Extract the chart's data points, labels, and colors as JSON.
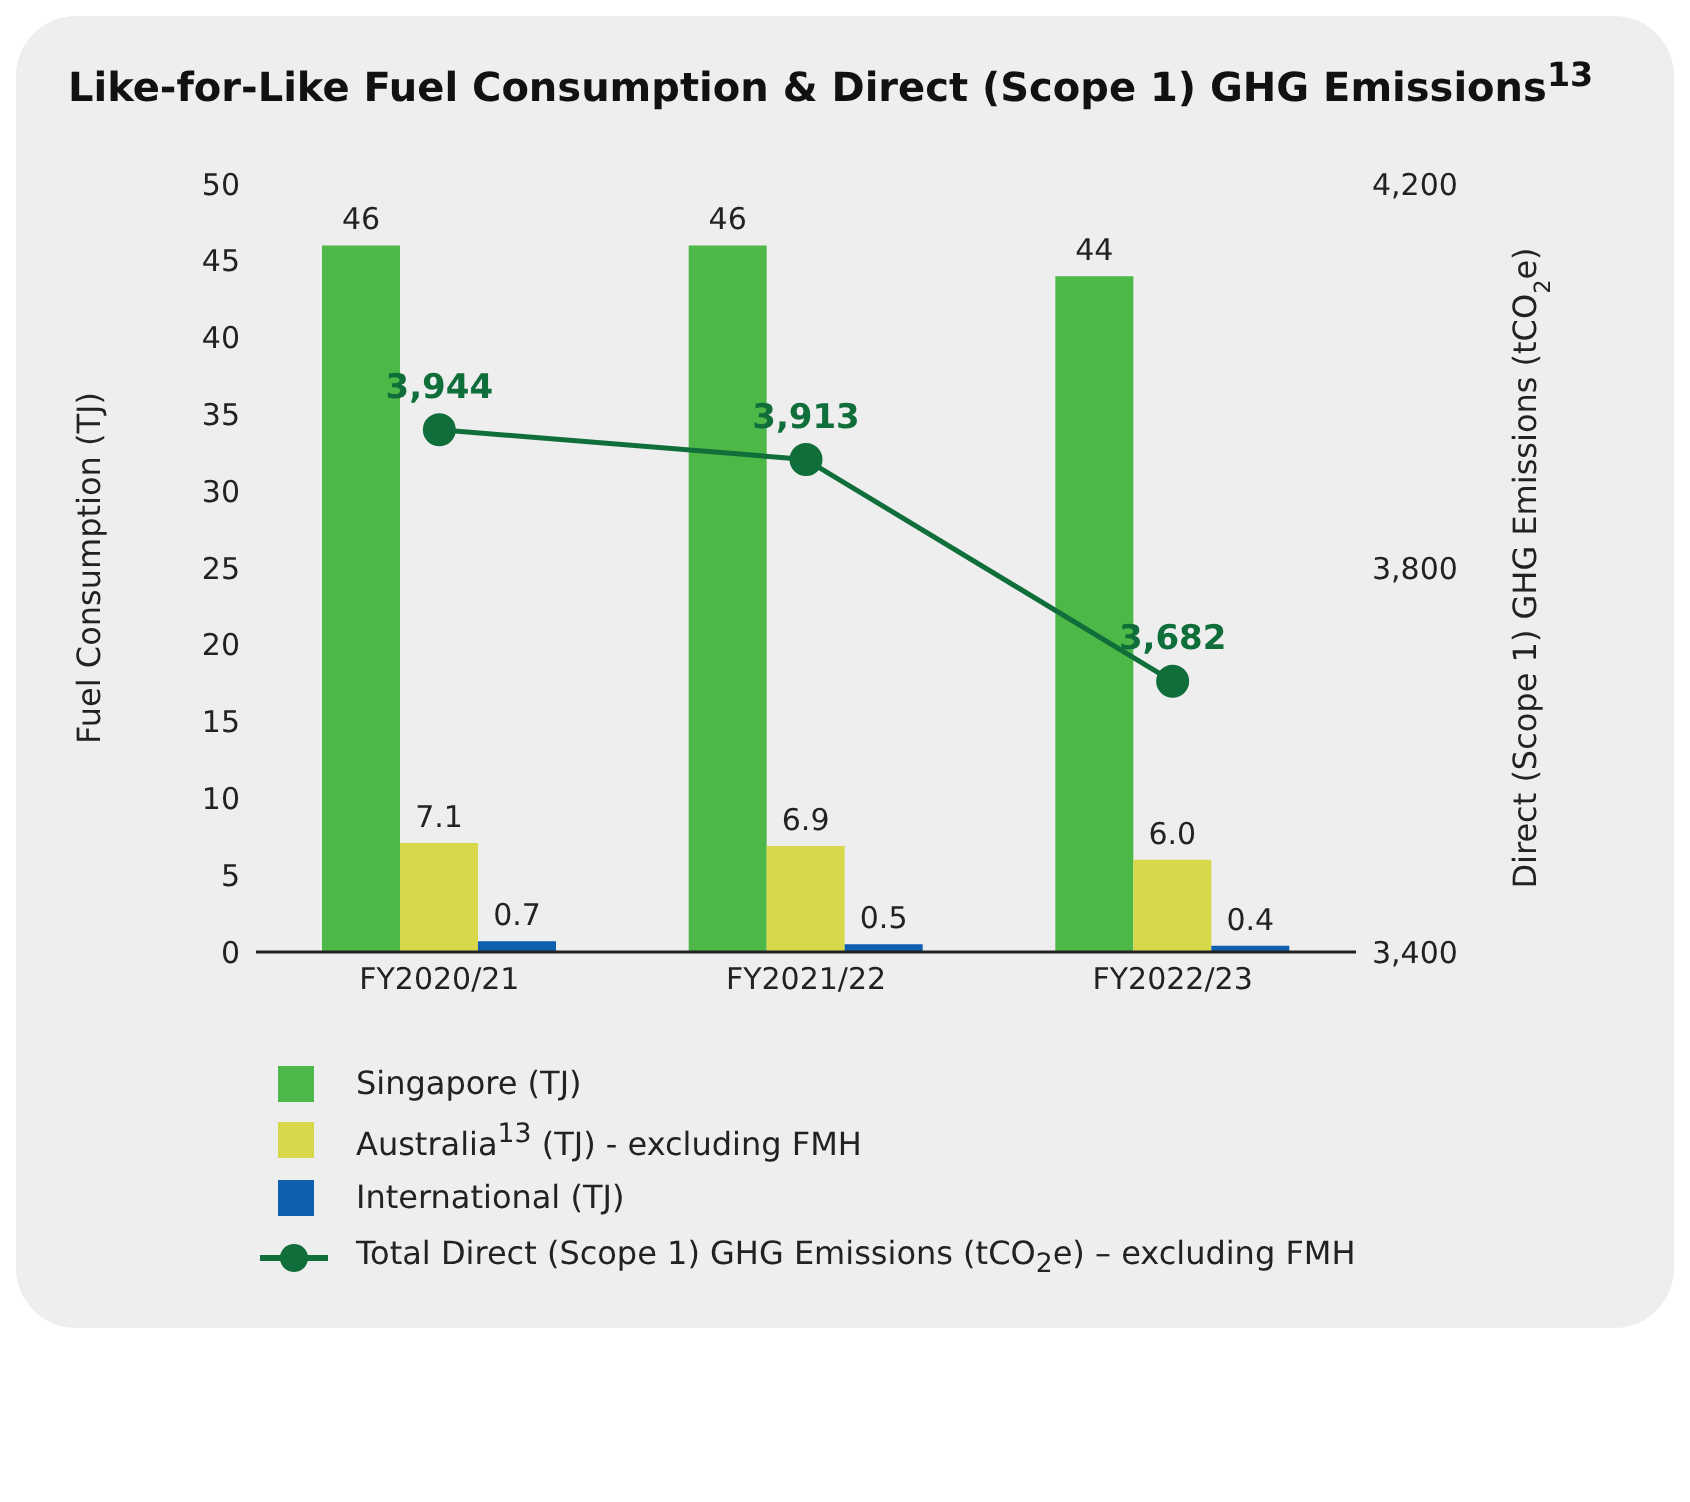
{
  "chart_data": {
    "type": "bar",
    "title": "Like-for-Like Fuel Consumption & Direct (Scope 1) GHG Emissions$^{13}$",
    "ylabel": "Fuel Consumption (TJ)",
    "y2label": "Direct (Scope 1) GHG Emissions (tCO$_{2}$e)",
    "categories": [
      "FY2020/21",
      "FY2021/22",
      "FY2022/23"
    ],
    "series": [
      {
        "name": "Singapore (TJ)",
        "color": "#4db848",
        "values": [
          46,
          46,
          44
        ]
      },
      {
        "name": "Australia$^{13}$ (TJ) - excluding FMH",
        "color": "#d7d94a",
        "values": [
          7.1,
          6.9,
          6.0
        ],
        "value_labels": [
          "7.1",
          "6.9",
          "6.0"
        ]
      },
      {
        "name": "International (TJ)",
        "color": "#0e5fae",
        "values": [
          0.7,
          0.5,
          0.4
        ]
      },
      {
        "name": "Total Direct (Scope 1) GHG Emissions (tCO$_{2}$e) – excluding FMH",
        "type": "line",
        "axis": "y2",
        "color": "#0f6e3a",
        "values": [
          3944,
          3913,
          3682
        ],
        "value_labels": [
          "3,944",
          "3,913",
          "3,682"
        ]
      }
    ],
    "ylim": [
      0,
      50
    ],
    "yticks": [
      0,
      5,
      10,
      15,
      20,
      25,
      30,
      35,
      40,
      45,
      50
    ],
    "y2lim": [
      3400,
      4200
    ],
    "y2ticks": [
      {
        "value": 3400,
        "label": "3,400"
      },
      {
        "value": 3800,
        "label": "3,800"
      },
      {
        "value": 4200,
        "label": "4,200"
      }
    ],
    "data_labels": true,
    "grid": false,
    "legend": "bottom",
    "marker": "circle",
    "line_style": "solid"
  }
}
